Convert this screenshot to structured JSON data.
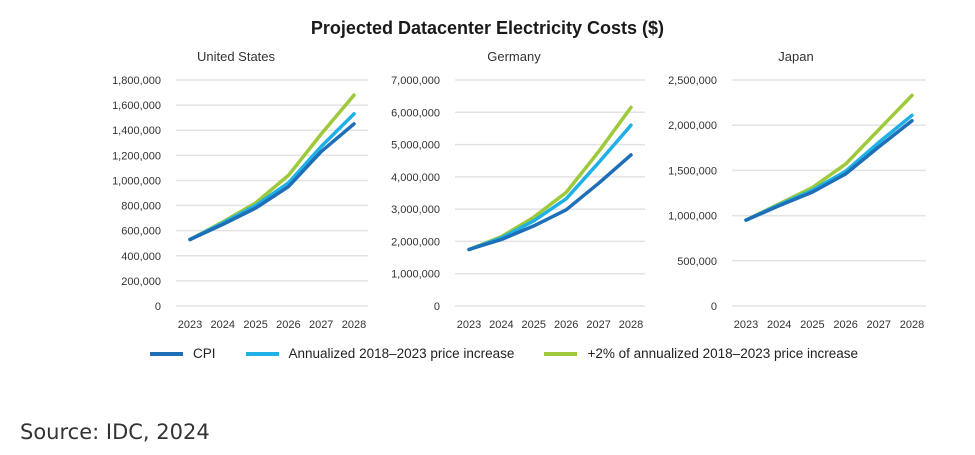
{
  "chart_data": {
    "type": "line",
    "title": "Projected Datacenter Electricity Costs ($)",
    "legend_position": "bottom",
    "legend": [
      {
        "name": "CPI",
        "color": "#1f6fb8"
      },
      {
        "name": "Annualized 2018–2023 price increase",
        "color": "#1fb0e6"
      },
      {
        "name": "+2% of annualized 2018–2023 price increase",
        "color": "#9ec93a"
      }
    ],
    "source": "Source: IDC, 2024",
    "panels": [
      {
        "subtitle": "United States",
        "x": [
          "2023",
          "2024",
          "2025",
          "2026",
          "2027",
          "2028"
        ],
        "ylim": [
          0,
          1800000
        ],
        "yticks": [
          0,
          200000,
          400000,
          600000,
          800000,
          1000000,
          1200000,
          1400000,
          1600000,
          1800000
        ],
        "ytick_labels": [
          "0",
          "200,000",
          "400,000",
          "600,000",
          "800,000",
          "1,000,000",
          "1,200,000",
          "1,400,000",
          "1,600,000",
          "1,800,000"
        ],
        "grid": true,
        "series": [
          {
            "name": "CPI",
            "values": [
              530000,
              650000,
              780000,
              950000,
              1230000,
              1450000
            ]
          },
          {
            "name": "Annualized 2018–2023 price increase",
            "values": [
              530000,
              660000,
              800000,
              980000,
              1270000,
              1530000
            ]
          },
          {
            "name": "+2% of annualized 2018–2023 price increase",
            "values": [
              530000,
              670000,
              820000,
              1040000,
              1370000,
              1680000
            ]
          }
        ]
      },
      {
        "subtitle": "Germany",
        "x": [
          "2023",
          "2024",
          "2025",
          "2026",
          "2027",
          "2028"
        ],
        "ylim": [
          0,
          7000000
        ],
        "yticks": [
          0,
          1000000,
          2000000,
          3000000,
          4000000,
          5000000,
          6000000,
          7000000
        ],
        "ytick_labels": [
          "0",
          "1,000,000",
          "2,000,000",
          "3,000,000",
          "4,000,000",
          "5,000,000",
          "6,000,000",
          "7,000,000"
        ],
        "grid": true,
        "series": [
          {
            "name": "CPI",
            "values": [
              1750000,
              2060000,
              2480000,
              2980000,
              3800000,
              4680000
            ]
          },
          {
            "name": "Annualized 2018–2023 price increase",
            "values": [
              1750000,
              2110000,
              2640000,
              3320000,
              4440000,
              5600000
            ]
          },
          {
            "name": "+2% of annualized 2018–2023 price increase",
            "values": [
              1750000,
              2150000,
              2750000,
              3520000,
              4780000,
              6150000
            ]
          }
        ]
      },
      {
        "subtitle": "Japan",
        "x": [
          "2023",
          "2024",
          "2025",
          "2026",
          "2027",
          "2028"
        ],
        "ylim": [
          0,
          2500000
        ],
        "yticks": [
          0,
          500000,
          1000000,
          1500000,
          2000000,
          2500000
        ],
        "ytick_labels": [
          "0",
          "500,000",
          "1,000,000",
          "1,500,000",
          "2,000,000",
          "2,500,000"
        ],
        "grid": true,
        "series": [
          {
            "name": "CPI",
            "values": [
              950000,
              1110000,
              1260000,
              1460000,
              1760000,
              2050000
            ]
          },
          {
            "name": "Annualized 2018–2023 price increase",
            "values": [
              950000,
              1120000,
              1280000,
              1490000,
              1810000,
              2110000
            ]
          },
          {
            "name": "+2% of annualized 2018–2023 price increase",
            "values": [
              950000,
              1130000,
              1310000,
              1570000,
              1950000,
              2330000
            ]
          }
        ]
      }
    ]
  }
}
